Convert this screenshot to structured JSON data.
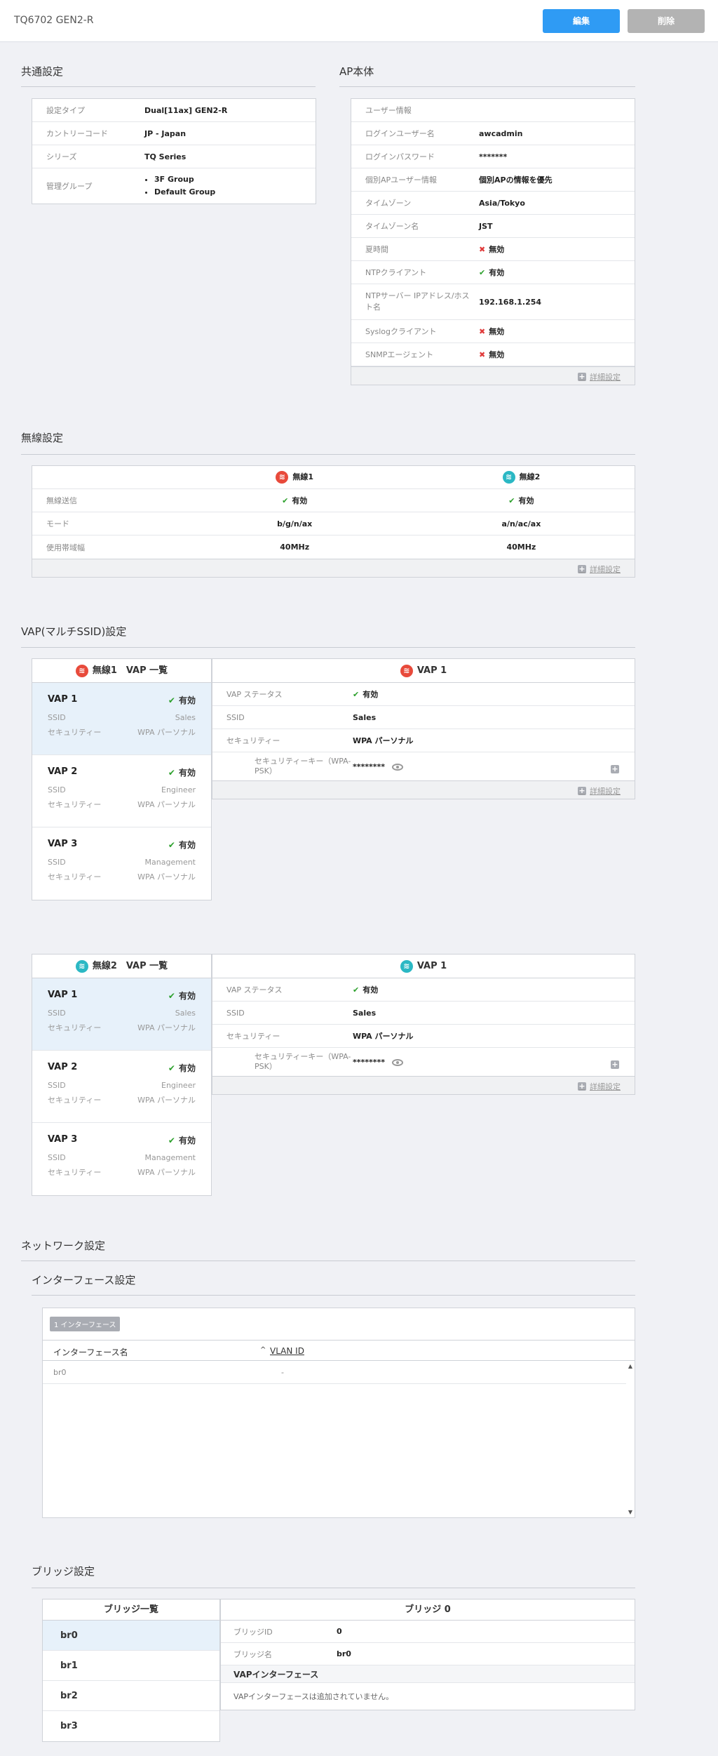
{
  "header": {
    "title": "TQ6702 GEN2-R",
    "edit_label": "編集",
    "delete_label": "削除"
  },
  "common": {
    "title": "共通設定",
    "rows": [
      {
        "k": "設定タイプ",
        "v": "Dual[11ax] GEN2-R"
      },
      {
        "k": "カントリーコード",
        "v": "JP - Japan"
      },
      {
        "k": "シリーズ",
        "v": "TQ Series"
      },
      {
        "k": "管理グループ",
        "v1": "3F Group",
        "v2": "Default Group"
      }
    ]
  },
  "ap": {
    "title": "AP本体",
    "rows": [
      {
        "k": "ユーザー情報",
        "v": ""
      },
      {
        "k": "ログインユーザー名",
        "v": "awcadmin"
      },
      {
        "k": "ログインパスワード",
        "v": "*******"
      },
      {
        "k": "個別APユーザー情報",
        "v": "個別APの情報を優先"
      },
      {
        "k": "タイムゾーン",
        "v": "Asia/Tokyo"
      },
      {
        "k": "タイムゾーン名",
        "v": "JST"
      },
      {
        "k": "夏時間",
        "v": "無効"
      },
      {
        "k": "NTPクライアント",
        "v": "有効"
      },
      {
        "k": "NTPサーバー IPアドレス/ホスト名",
        "v": "192.168.1.254"
      },
      {
        "k": "Syslogクライアント",
        "v": "無効"
      },
      {
        "k": "SNMPエージェント",
        "v": "無効"
      }
    ],
    "detail": "詳細設定"
  },
  "wireless": {
    "title": "無線設定",
    "radio1": "無線1",
    "radio2": "無線2",
    "rows": [
      {
        "k": "無線送信",
        "r1": "有効",
        "r2": "有効"
      },
      {
        "k": "モード",
        "r1": "b/g/n/ax",
        "r2": "a/n/ac/ax"
      },
      {
        "k": "使用帯域幅",
        "r1": "40MHz",
        "r2": "40MHz"
      }
    ],
    "detail": "詳細設定"
  },
  "vap": {
    "title": "VAP(マルチSSID)設定",
    "list1_title": "無線1　VAP 一覧",
    "list2_title": "無線2　VAP 一覧",
    "ssid_label": "SSID",
    "sec_label": "セキュリティー",
    "items": [
      {
        "name": "VAP 1",
        "status": "有効",
        "ssid": "Sales",
        "sec": "WPA パーソナル"
      },
      {
        "name": "VAP 2",
        "status": "有効",
        "ssid": "Engineer",
        "sec": "WPA パーソナル"
      },
      {
        "name": "VAP 3",
        "status": "有効",
        "ssid": "Management",
        "sec": "WPA パーソナル"
      }
    ],
    "detail_title": "VAP 1",
    "detail_rows": {
      "status_k": "VAP ステータス",
      "status_v": "有効",
      "ssid_k": "SSID",
      "ssid_v": "Sales",
      "sec_k": "セキュリティー",
      "sec_v": "WPA パーソナル",
      "key_k": "セキュリティーキー（WPA-PSK）",
      "key_v": "********"
    },
    "detail": "詳細設定"
  },
  "network": {
    "title": "ネットワーク設定",
    "if_title": "インターフェース設定",
    "badge": "1 インターフェース",
    "col1": "インターフェース名",
    "col2": "VLAN ID",
    "row_name": "br0",
    "row_vlan": "-"
  },
  "bridge": {
    "title": "ブリッジ設定",
    "list_title": "ブリッジ一覧",
    "items": [
      "br0",
      "br1",
      "br2",
      "br3"
    ],
    "detail_title": "ブリッジ 0",
    "id_k": "ブリッジID",
    "id_v": "0",
    "name_k": "ブリッジ名",
    "name_v": "br0",
    "vapif_title": "VAPインターフェース",
    "vapif_msg": "VAPインターフェースは追加されていません。"
  }
}
